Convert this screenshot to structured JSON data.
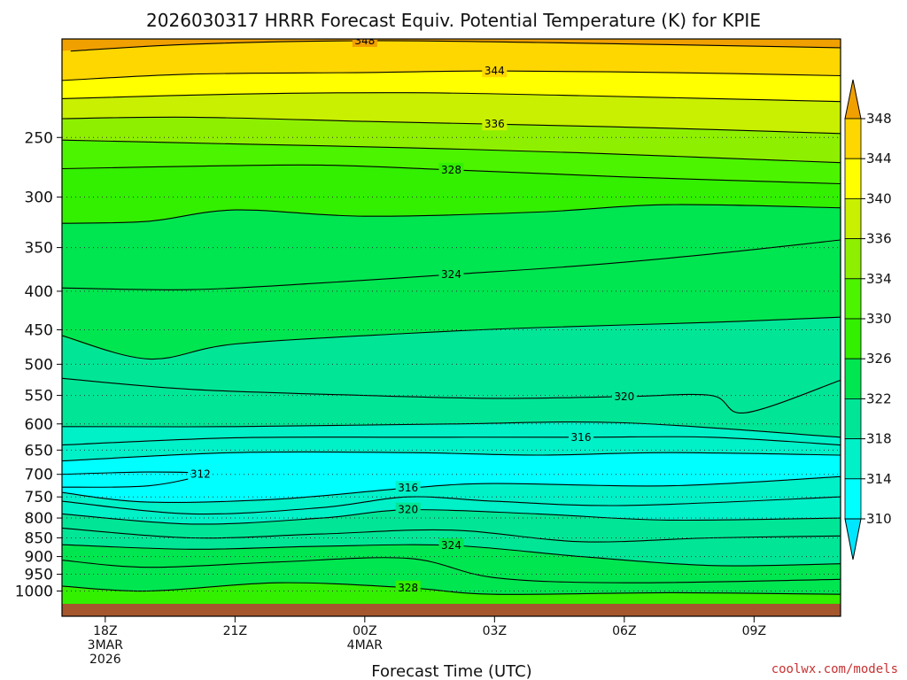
{
  "chart_data": {
    "type": "heatmap",
    "title": "2026030317 HRRR Forecast Equiv. Potential Temperature (K) for KPIE",
    "xlabel": "Forecast Time (UTC)",
    "ylabel": "",
    "y_scale": "log",
    "y_reversed": true,
    "ylim": [
      1040,
      185
    ],
    "y_ticks": [
      250,
      300,
      350,
      400,
      450,
      500,
      550,
      600,
      650,
      700,
      750,
      800,
      850,
      900,
      950,
      1000
    ],
    "x_ticks": [
      {
        "hour": 18,
        "lines": [
          "18Z",
          "3MAR",
          "2026"
        ]
      },
      {
        "hour": 21,
        "lines": [
          "21Z"
        ]
      },
      {
        "hour": 24,
        "lines": [
          "00Z",
          "4MAR"
        ]
      },
      {
        "hour": 27,
        "lines": [
          "03Z"
        ]
      },
      {
        "hour": 30,
        "lines": [
          "06Z"
        ]
      },
      {
        "hour": 33,
        "lines": [
          "09Z"
        ]
      }
    ],
    "xlim": [
      17,
      35
    ],
    "grid": "dotted horizontal lines at pressure ticks",
    "colorbar": {
      "units": "K",
      "labels": [
        310,
        314,
        318,
        322,
        326,
        330,
        334,
        336,
        340,
        344,
        348
      ],
      "bands": [
        {
          "low": 310,
          "high": 314,
          "color": "#00ffff"
        },
        {
          "low": 314,
          "high": 318,
          "color": "#00f0c8"
        },
        {
          "low": 318,
          "high": 322,
          "color": "#00e696"
        },
        {
          "low": 322,
          "high": 326,
          "color": "#00e650"
        },
        {
          "low": 326,
          "high": 330,
          "color": "#32f000"
        },
        {
          "low": 330,
          "high": 334,
          "color": "#4cf400"
        },
        {
          "low": 334,
          "high": 336,
          "color": "#8ef000"
        },
        {
          "low": 336,
          "high": 340,
          "color": "#c8f000"
        },
        {
          "low": 340,
          "high": 344,
          "color": "#ffff00"
        },
        {
          "low": 344,
          "high": 348,
          "color": "#ffd700"
        }
      ],
      "over_color": "#f0a000",
      "under_color": "#00e6ff"
    },
    "contours": [
      {
        "value": 348,
        "labeled": true,
        "points": [
          [
            17.2,
            192
          ],
          [
            20,
            188
          ],
          [
            24,
            186
          ],
          [
            28,
            187
          ],
          [
            35,
            190
          ]
        ]
      },
      {
        "value": 344,
        "labeled": true,
        "points": [
          [
            17,
            210
          ],
          [
            20,
            206
          ],
          [
            24,
            205
          ],
          [
            27,
            204
          ],
          [
            31,
            205
          ],
          [
            35,
            207
          ]
        ]
      },
      {
        "value": 340,
        "labeled": false,
        "points": [
          [
            17,
            222
          ],
          [
            21,
            219
          ],
          [
            25,
            218
          ],
          [
            29,
            220
          ],
          [
            35,
            224
          ]
        ]
      },
      {
        "value": 336,
        "labeled": true,
        "points": [
          [
            17,
            236
          ],
          [
            20,
            235
          ],
          [
            24,
            238
          ],
          [
            27,
            240
          ],
          [
            31,
            243
          ],
          [
            35,
            247
          ]
        ]
      },
      {
        "value": 332,
        "labeled": false,
        "points": [
          [
            17,
            252
          ],
          [
            21,
            255
          ],
          [
            25,
            258
          ],
          [
            29,
            262
          ],
          [
            35,
            270
          ]
        ]
      },
      {
        "value": 328,
        "labeled": true,
        "points": [
          [
            17,
            275
          ],
          [
            20,
            273
          ],
          [
            23,
            272
          ],
          [
            26,
            276
          ],
          [
            30,
            282
          ],
          [
            35,
            288
          ]
        ]
      },
      {
        "value": 326,
        "labeled": false,
        "points": [
          [
            17,
            325
          ],
          [
            19,
            323
          ],
          [
            21,
            312
          ],
          [
            24,
            318
          ],
          [
            28,
            314
          ],
          [
            31,
            307
          ],
          [
            35,
            310
          ]
        ]
      },
      {
        "value": 324,
        "labeled": true,
        "points": [
          [
            17,
            396
          ],
          [
            20,
            398
          ],
          [
            23,
            390
          ],
          [
            26,
            380
          ],
          [
            29,
            370
          ],
          [
            32,
            357
          ],
          [
            35,
            342
          ]
        ]
      },
      {
        "value": 322,
        "labeled": false,
        "points": [
          [
            17,
            458
          ],
          [
            19,
            492
          ],
          [
            21,
            470
          ],
          [
            25,
            455
          ],
          [
            28,
            447
          ],
          [
            32,
            440
          ],
          [
            35,
            433
          ]
        ]
      },
      {
        "value": 320,
        "labeled": true,
        "points": [
          [
            17,
            522
          ],
          [
            20,
            540
          ],
          [
            24,
            550
          ],
          [
            27,
            555
          ],
          [
            30,
            552
          ],
          [
            32,
            550
          ],
          [
            32.8,
            580
          ],
          [
            35,
            525
          ]
        ]
      },
      {
        "value": 318,
        "labeled": false,
        "points": [
          [
            17,
            605
          ],
          [
            21,
            605
          ],
          [
            26,
            600
          ],
          [
            30,
            598
          ],
          [
            35,
            625
          ]
        ]
      },
      {
        "value": 316,
        "labeled": true,
        "points": [
          [
            17,
            640
          ],
          [
            21,
            626
          ],
          [
            25,
            625
          ],
          [
            29,
            625
          ],
          [
            32,
            625
          ],
          [
            35,
            640
          ]
        ]
      },
      {
        "value": 314,
        "labeled": false,
        "points": [
          [
            17,
            672
          ],
          [
            21,
            655
          ],
          [
            25,
            655
          ],
          [
            28,
            660
          ],
          [
            31,
            655
          ],
          [
            35,
            660
          ]
        ]
      },
      {
        "value": 312,
        "labeled": true,
        "points": [
          [
            17,
            700
          ],
          [
            19,
            695
          ],
          [
            20.2,
            700
          ],
          [
            19,
            725
          ],
          [
            17,
            728
          ]
        ]
      },
      {
        "value": 316,
        "labeled": true,
        "points": [
          [
            17,
            740
          ],
          [
            19,
            762
          ],
          [
            22,
            755
          ],
          [
            25,
            730
          ],
          [
            27,
            720
          ],
          [
            31,
            725
          ],
          [
            35,
            705
          ]
        ]
      },
      {
        "value": 318,
        "labeled": false,
        "points": [
          [
            17,
            760
          ],
          [
            20,
            790
          ],
          [
            23,
            775
          ],
          [
            25,
            750
          ],
          [
            27,
            760
          ],
          [
            30,
            770
          ],
          [
            35,
            750
          ]
        ]
      },
      {
        "value": 320,
        "labeled": true,
        "points": [
          [
            17,
            790
          ],
          [
            20,
            815
          ],
          [
            23,
            800
          ],
          [
            25,
            780
          ],
          [
            28,
            790
          ],
          [
            31,
            805
          ],
          [
            35,
            800
          ]
        ]
      },
      {
        "value": 322,
        "labeled": false,
        "points": [
          [
            17,
            825
          ],
          [
            20,
            850
          ],
          [
            23,
            840
          ],
          [
            26,
            830
          ],
          [
            29,
            860
          ],
          [
            32,
            850
          ],
          [
            35,
            845
          ]
        ]
      },
      {
        "value": 324,
        "labeled": true,
        "points": [
          [
            17,
            868
          ],
          [
            20,
            880
          ],
          [
            23,
            872
          ],
          [
            26,
            870
          ],
          [
            29,
            900
          ],
          [
            32,
            925
          ],
          [
            35,
            920
          ]
        ]
      },
      {
        "value": 326,
        "labeled": false,
        "points": [
          [
            17,
            910
          ],
          [
            19,
            930
          ],
          [
            22,
            915
          ],
          [
            25,
            905
          ],
          [
            27,
            960
          ],
          [
            30,
            975
          ],
          [
            35,
            965
          ]
        ]
      },
      {
        "value": 328,
        "labeled": true,
        "points": [
          [
            17,
            985
          ],
          [
            19,
            1000
          ],
          [
            22,
            975
          ],
          [
            25,
            990
          ],
          [
            27,
            1010
          ],
          [
            31,
            1005
          ],
          [
            35,
            1010
          ]
        ]
      }
    ]
  }
}
